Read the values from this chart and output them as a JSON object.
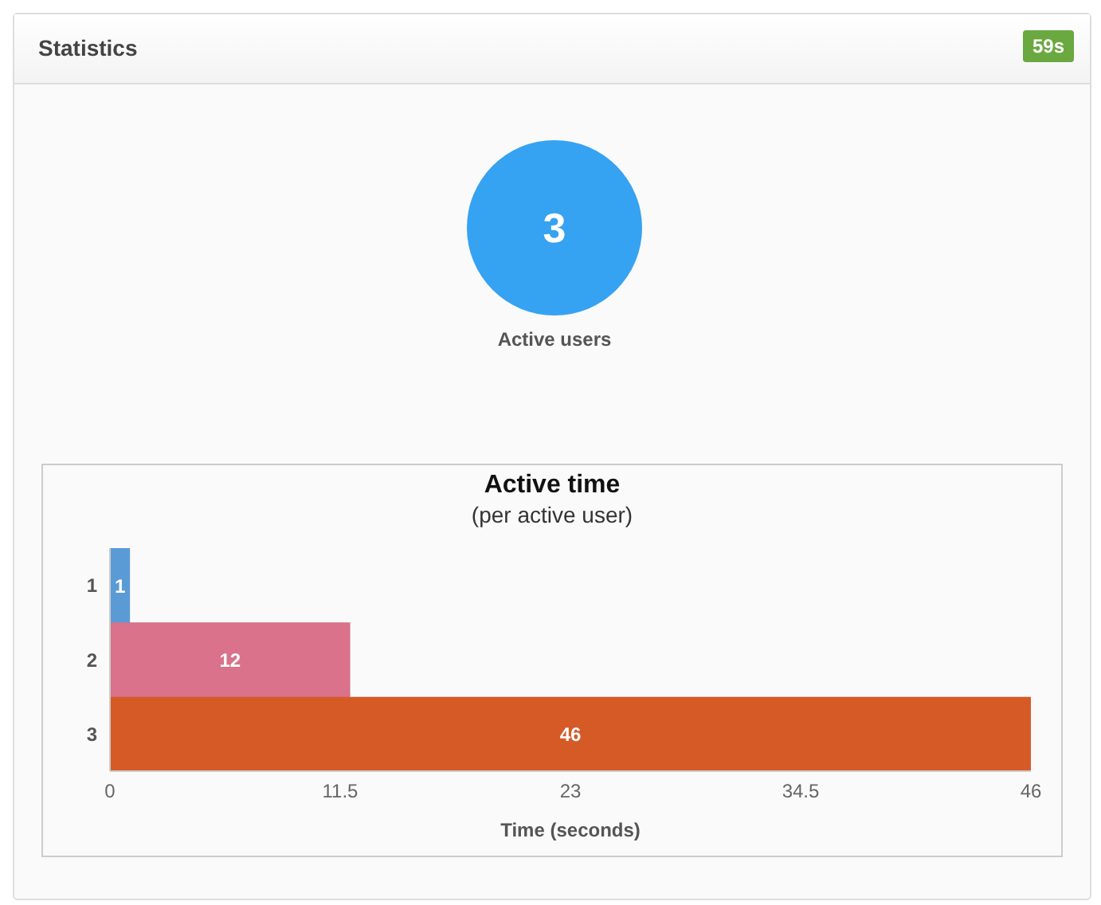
{
  "chart_data": {
    "type": "bar",
    "orientation": "horizontal",
    "title": "Active time",
    "subtitle": "(per active user)",
    "xlabel": "Time (seconds)",
    "categories": [
      "1",
      "2",
      "3"
    ],
    "values": [
      1,
      12,
      46
    ],
    "colors": [
      "#5b9bd5",
      "#d9728a",
      "#d65a25"
    ],
    "xlim": [
      0,
      46
    ],
    "xticks": [
      0,
      11.5,
      23,
      34.5,
      46
    ],
    "grid": false,
    "data_labels": true,
    "legend": false,
    "annotations": [
      "Statistics",
      "59s",
      "3",
      "Active users"
    ]
  }
}
